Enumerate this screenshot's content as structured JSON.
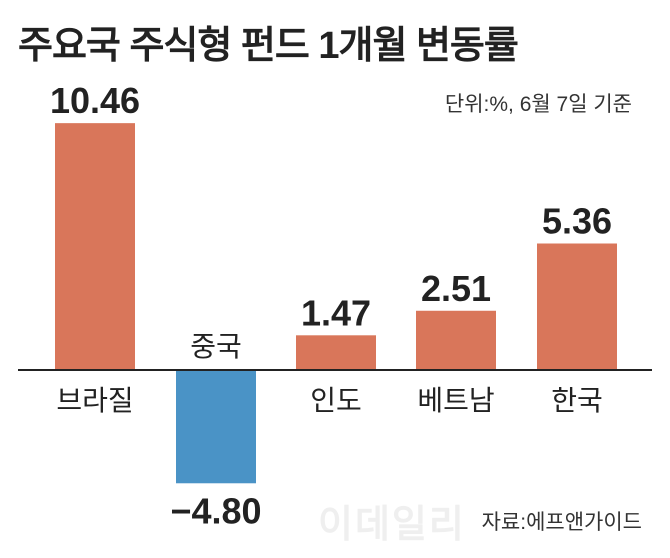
{
  "title": "주요국 주식형 펀드 1개월 변동률",
  "subtitle": "단위:%, 6월 7일 기준",
  "source": "자료:에프앤가이드",
  "watermark": "이데일리",
  "colors": {
    "positive": "#d9765a",
    "negative": "#4a93c6",
    "axis": "#222222"
  },
  "chart_data": {
    "type": "bar",
    "title": "주요국 주식형 펀드 1개월 변동률",
    "unit_note": "단위:%, 6월 7일 기준",
    "categories": [
      "브라질",
      "중국",
      "인도",
      "베트남",
      "한국"
    ],
    "values": [
      10.46,
      -4.8,
      1.47,
      2.51,
      5.36
    ],
    "value_labels": [
      "10.46",
      "−4.80",
      "1.47",
      "2.51",
      "5.36"
    ],
    "grid": false,
    "legend": "none"
  }
}
